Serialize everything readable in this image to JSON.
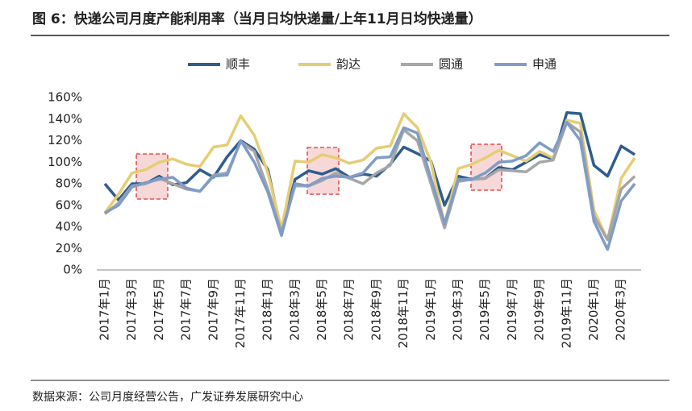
{
  "chart_data": {
    "type": "line",
    "title": "图 6：快递公司月度产能利用率（当月日均快递量/上年11月日均快递量）",
    "source": "数据来源：公司月度经营公告，广发证券发展研究中心",
    "categories": [
      "2017年1月",
      null,
      "2017年3月",
      null,
      "2017年5月",
      null,
      "2017年7月",
      null,
      "2017年9月",
      null,
      "2017年11月",
      null,
      "2018年1月",
      null,
      "2018年3月",
      null,
      "2018年5月",
      null,
      "2018年7月",
      null,
      "2018年9月",
      null,
      "2018年11月",
      null,
      "2019年1月",
      null,
      "2019年3月",
      null,
      "2019年5月",
      null,
      "2019年7月",
      null,
      "2019年9月",
      null,
      "2019年11月",
      null,
      "2020年1月",
      null,
      "2020年3月",
      null
    ],
    "series": [
      {
        "name": "顺丰",
        "color": "#2e5d8e",
        "values": [
          80,
          65,
          80,
          80,
          87,
          79,
          81,
          93,
          86,
          105,
          120,
          112,
          93,
          35,
          84,
          92,
          89,
          94,
          86,
          89,
          87,
          98,
          114,
          108,
          101,
          60,
          87,
          84,
          85,
          95,
          93,
          100,
          107,
          103,
          146,
          145,
          97,
          87,
          115,
          107
        ]
      },
      {
        "name": "韵达",
        "color": "#e6cd73",
        "values": [
          53,
          70,
          90,
          93,
          100,
          103,
          98,
          96,
          114,
          116,
          143,
          125,
          90,
          38,
          101,
          100,
          107,
          104,
          99,
          102,
          113,
          115,
          145,
          132,
          100,
          42,
          94,
          98,
          104,
          111,
          106,
          101,
          110,
          104,
          139,
          136,
          55,
          28,
          85,
          104
        ]
      },
      {
        "name": "圆通",
        "color": "#a6a6a6",
        "values": [
          52,
          62,
          78,
          80,
          85,
          80,
          75,
          73,
          88,
          90,
          119,
          110,
          75,
          35,
          78,
          78,
          83,
          90,
          85,
          80,
          90,
          97,
          130,
          120,
          80,
          39,
          82,
          84,
          85,
          93,
          92,
          91,
          100,
          102,
          137,
          128,
          50,
          28,
          75,
          87
        ]
      },
      {
        "name": "申通",
        "color": "#7f9cc7",
        "values": [
          53,
          60,
          77,
          81,
          84,
          86,
          76,
          73,
          87,
          88,
          120,
          100,
          72,
          32,
          80,
          78,
          85,
          87,
          86,
          90,
          104,
          105,
          132,
          127,
          85,
          43,
          84,
          84,
          90,
          100,
          101,
          106,
          118,
          110,
          137,
          120,
          45,
          19,
          64,
          80
        ]
      }
    ],
    "ylim": [
      0,
      160
    ],
    "yticks": [
      {
        "value": 0,
        "label": "0%"
      },
      {
        "value": 20,
        "label": "20%"
      },
      {
        "value": 40,
        "label": "40%"
      },
      {
        "value": 60,
        "label": "60%"
      },
      {
        "value": 80,
        "label": "80%"
      },
      {
        "value": 100,
        "label": "100%"
      },
      {
        "value": 120,
        "label": "120%"
      },
      {
        "value": 140,
        "label": "140%"
      },
      {
        "value": 160,
        "label": "160%"
      }
    ],
    "legend": "top"
  }
}
